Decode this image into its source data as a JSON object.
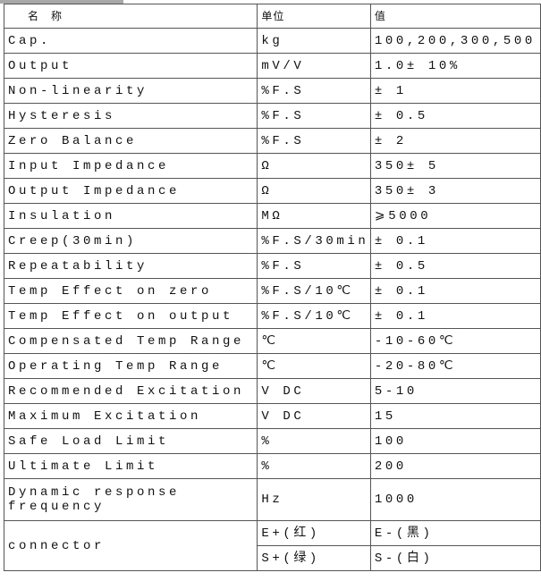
{
  "header": {
    "name": "名　称",
    "unit": "单位",
    "value": "值"
  },
  "rows": [
    {
      "name": "Cap.",
      "unit": "kg",
      "value": "100,200,300,500"
    },
    {
      "name": "Output",
      "unit": "mV/V",
      "value": "1.0± 10%"
    },
    {
      "name": "Non-linearity",
      "unit": "%F.S",
      "value": "± 1"
    },
    {
      "name": "Hysteresis",
      "unit": "%F.S",
      "value": "± 0.5"
    },
    {
      "name": "Zero Balance",
      "unit": "%F.S",
      "value": "± 2"
    },
    {
      "name": "Input Impedance",
      "unit": "Ω",
      "value": "350± 5"
    },
    {
      "name": "Output  Impedance",
      "unit": "Ω",
      "value": "350± 3"
    },
    {
      "name": "Insulation",
      "unit": "MΩ",
      "value": "⩾5000"
    },
    {
      "name": "Creep(30min)",
      "unit": "%F.S/30min",
      "value": "± 0.1"
    },
    {
      "name": "Repeatability",
      "unit": "%F.S",
      "value": "± 0.5"
    },
    {
      "name": "Temp Effect on zero",
      "unit": "%F.S/10℃",
      "value": "± 0.1"
    },
    {
      "name": "Temp Effect on output",
      "unit": "%F.S/10℃",
      "value": "± 0.1"
    },
    {
      "name": "Compensated Temp Range",
      "unit": "℃",
      "value": "-10-60℃"
    },
    {
      "name": "Operating Temp Range",
      "unit": "℃",
      "value": "-20-80℃"
    },
    {
      "name": "Recommended Excitation",
      "unit": "V DC",
      "value": "5-10"
    },
    {
      "name": "Maximum Excitation",
      "unit": "V DC",
      "value": "15"
    },
    {
      "name": "Safe Load Limit",
      "unit": "%",
      "value": "100"
    },
    {
      "name": "Ultimate Limit",
      "unit": "%",
      "value": "200"
    },
    {
      "name": "Dynamic response frequency",
      "unit": "Hz",
      "value": "1000"
    }
  ],
  "connector": {
    "name": "connector",
    "wires": [
      {
        "plus": "E+(红)",
        "minus": "E-(黑)"
      },
      {
        "plus": "S+(绿)",
        "minus": "S-(白)"
      }
    ]
  }
}
